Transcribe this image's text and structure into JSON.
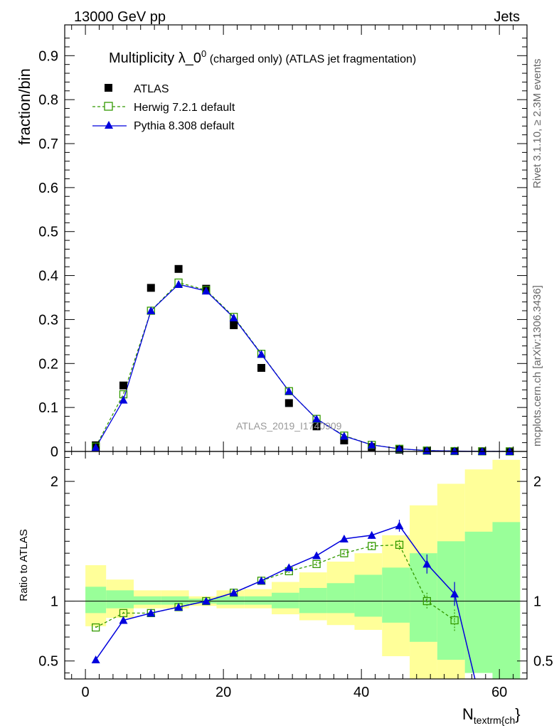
{
  "header": {
    "left": "13000 GeV pp",
    "right": "Jets"
  },
  "side_texts": {
    "rivet": "Rivet 3.1.10, ≥ 2.3M events",
    "mcplots": "mcplots.cern.ch [arXiv:1306.3436]"
  },
  "chart_data": {
    "type": "scatter",
    "title": "Multiplicity λ_0",
    "title_sup": "0",
    "title_suffix": " (charged only) (ATLAS jet fragmentation)",
    "watermark": "ATLAS_2019_I1740909",
    "xlabel_main": "N",
    "xlabel_sub": "textrm{ch",
    "xlabel_tail": "}",
    "ylabel_main": "fraction/bin",
    "ylabel_ratio": "Ratio to ATLAS",
    "xlim": [
      -3,
      64
    ],
    "ylim_main": [
      0,
      0.97
    ],
    "ylim_ratio": [
      0.35,
      2.25
    ],
    "x_ticks": [
      0,
      20,
      40,
      60
    ],
    "x_tick_labels": [
      "0",
      "20",
      "40",
      "60"
    ],
    "y_ticks_main": [
      0,
      0.1,
      0.2,
      0.3,
      0.4,
      0.5,
      0.6,
      0.7,
      0.8,
      0.9
    ],
    "y_tick_labels_main": [
      "0",
      "0.1",
      "0.2",
      "0.3",
      "0.4",
      "0.5",
      "0.6",
      "0.7",
      "0.8",
      "0.9"
    ],
    "y_ticks_ratio": [
      0.5,
      1,
      2
    ],
    "y_tick_labels_ratio": [
      "0.5",
      "1",
      "2"
    ],
    "bins": [
      [
        0,
        3
      ],
      [
        3,
        7
      ],
      [
        7,
        11
      ],
      [
        11,
        15
      ],
      [
        15,
        19
      ],
      [
        19,
        23
      ],
      [
        23,
        27
      ],
      [
        27,
        31
      ],
      [
        31,
        35
      ],
      [
        35,
        39
      ],
      [
        39,
        43
      ],
      [
        43,
        47
      ],
      [
        47,
        51
      ],
      [
        51,
        55
      ],
      [
        55,
        59
      ],
      [
        59,
        63
      ]
    ],
    "x": [
      1.5,
      5.5,
      9.5,
      13.5,
      17.5,
      21.5,
      25.5,
      29.5,
      33.5,
      37.5,
      41.5,
      45.5,
      49.5,
      53.5,
      57.5,
      61.5
    ],
    "legend": {
      "position": "top-left",
      "entries": [
        "ATLAS",
        "Herwig 7.2.1 default",
        "Pythia 8.308 default"
      ]
    },
    "colors": {
      "data": "#000000",
      "herwig": "#339900",
      "pythia": "#0000dd",
      "band_inner": "#99ff99",
      "band_outer": "#ffff99"
    },
    "series": [
      {
        "name": "ATLAS",
        "values": [
          0.014,
          0.15,
          0.372,
          0.415,
          0.37,
          0.287,
          0.19,
          0.11,
          0.057,
          0.025,
          0.01,
          0.004,
          0.0015,
          0.0008,
          0.0004,
          0.0002
        ]
      },
      {
        "name": "Herwig 7.2.1 default",
        "values": [
          0.011,
          0.13,
          0.32,
          0.384,
          0.367,
          0.306,
          0.222,
          0.137,
          0.074,
          0.036,
          0.015,
          0.006,
          0.002,
          0.0008,
          0.0003,
          0.0001
        ],
        "ratio_x": [
          1.5,
          5.5,
          9.5,
          13.5,
          17.5,
          21.5,
          25.5,
          29.5,
          33.5,
          37.5,
          41.5,
          45.5,
          49.5,
          53.5
        ],
        "ratio": [
          0.78,
          0.9,
          0.9,
          0.95,
          1.0,
          1.07,
          1.17,
          1.25,
          1.31,
          1.4,
          1.46,
          1.47,
          1.0,
          0.84
        ],
        "ratio_err": [
          0.01,
          0.01,
          0.01,
          0.01,
          0.01,
          0.01,
          0.01,
          0.02,
          0.02,
          0.02,
          0.03,
          0.04,
          0.07,
          0.09
        ]
      },
      {
        "name": "Pythia 8.308 default",
        "values": [
          0.009,
          0.117,
          0.32,
          0.38,
          0.365,
          0.304,
          0.221,
          0.137,
          0.074,
          0.035,
          0.015,
          0.006,
          0.002,
          0.0008,
          0.0003,
          0.0001
        ],
        "ratio_x": [
          1.5,
          5.5,
          9.5,
          13.5,
          17.5,
          21.5,
          25.5,
          29.5,
          33.5,
          37.5,
          41.5,
          45.5,
          49.5,
          53.5,
          57.5
        ],
        "ratio": [
          0.51,
          0.84,
          0.9,
          0.95,
          1.0,
          1.07,
          1.17,
          1.28,
          1.38,
          1.52,
          1.55,
          1.63,
          1.31,
          1.06,
          0.1
        ],
        "ratio_err": [
          0.02,
          0.01,
          0.01,
          0.01,
          0.01,
          0.01,
          0.01,
          0.02,
          0.02,
          0.02,
          0.03,
          0.05,
          0.08,
          0.1,
          0.2
        ]
      }
    ],
    "ratio_band_inner": [
      [
        0.9,
        1.12
      ],
      [
        0.94,
        1.09
      ],
      [
        0.97,
        1.04
      ],
      [
        0.97,
        1.04
      ],
      [
        0.98,
        1.02
      ],
      [
        0.97,
        1.04
      ],
      [
        0.97,
        1.04
      ],
      [
        0.94,
        1.07
      ],
      [
        0.9,
        1.11
      ],
      [
        0.9,
        1.15
      ],
      [
        0.87,
        1.22
      ],
      [
        0.82,
        1.28
      ],
      [
        0.66,
        1.4
      ],
      [
        0.51,
        1.5
      ],
      [
        0.4,
        1.58
      ],
      [
        0.3,
        1.66
      ]
    ],
    "ratio_band_outer": [
      [
        0.79,
        1.3
      ],
      [
        0.86,
        1.18
      ],
      [
        0.94,
        1.09
      ],
      [
        0.94,
        1.09
      ],
      [
        0.96,
        1.04
      ],
      [
        0.94,
        1.09
      ],
      [
        0.94,
        1.1
      ],
      [
        0.89,
        1.16
      ],
      [
        0.84,
        1.24
      ],
      [
        0.8,
        1.33
      ],
      [
        0.76,
        1.4
      ],
      [
        0.54,
        1.55
      ],
      [
        0.3,
        1.8
      ],
      [
        0.2,
        1.98
      ],
      [
        0.4,
        2.1
      ],
      [
        0.1,
        2.18
      ]
    ]
  }
}
